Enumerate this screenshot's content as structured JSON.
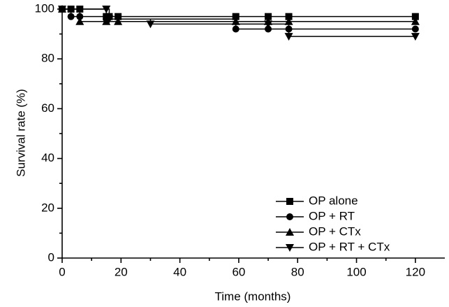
{
  "chart_data": {
    "type": "line",
    "step": true,
    "xlabel": "Time (months)",
    "ylabel": "Survival rate (%)",
    "xlim": [
      0,
      130
    ],
    "xticks": [
      0,
      20,
      40,
      60,
      80,
      100,
      120
    ],
    "ylim": [
      0,
      100
    ],
    "yticks": [
      0,
      20,
      40,
      60,
      80,
      100
    ],
    "legend": "center-right",
    "series": [
      {
        "name": "OP alone",
        "color": "#000000",
        "marker": "square",
        "x": [
          0,
          3,
          6,
          15,
          16,
          19,
          59,
          70,
          77,
          120
        ],
        "values": [
          100,
          100,
          100,
          97,
          97,
          97,
          97,
          97,
          97,
          97
        ]
      },
      {
        "name": "OP + RT",
        "color": "#000000",
        "marker": "circle",
        "x": [
          0,
          3,
          6,
          15,
          59,
          70,
          77,
          120
        ],
        "values": [
          100,
          97,
          97,
          96,
          92,
          92,
          92,
          92
        ]
      },
      {
        "name": "OP + CTx",
        "color": "#000000",
        "marker": "triangle-up",
        "x": [
          0,
          6,
          15,
          19,
          59,
          70,
          77,
          120
        ],
        "values": [
          100,
          95,
          95,
          95,
          95,
          95,
          95,
          95
        ]
      },
      {
        "name": "OP + RT + CTx",
        "color": "#000000",
        "marker": "triangle-down",
        "x": [
          0,
          15,
          16,
          30,
          70,
          77,
          120
        ],
        "values": [
          100,
          100,
          96,
          94,
          94,
          89,
          89
        ]
      }
    ]
  }
}
